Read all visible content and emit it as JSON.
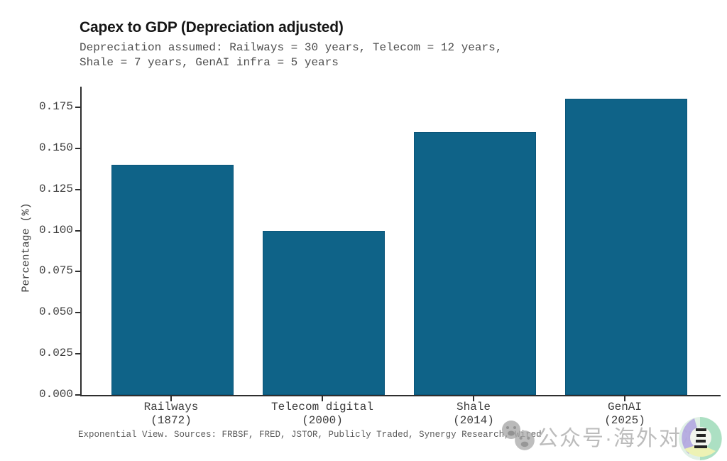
{
  "chart_data": {
    "type": "bar",
    "title": "Capex to GDP (Depreciation adjusted)",
    "subtitle_line1": "Depreciation assumed: Railways = 30 years, Telecom = 12 years,",
    "subtitle_line2": "Shale = 7 years, GenAI infra = 5 years",
    "ylabel": "Percentage (%)",
    "xlabel": "",
    "categories": [
      {
        "line1": "Railways",
        "line2": "(1872)"
      },
      {
        "line1": "Telecom digital",
        "line2": "(2000)"
      },
      {
        "line1": "Shale",
        "line2": "(2014)"
      },
      {
        "line1": "GenAI",
        "line2": "(2025)"
      }
    ],
    "values": [
      0.14,
      0.1,
      0.16,
      0.18
    ],
    "yticks": [
      "0.000",
      "0.025",
      "0.050",
      "0.075",
      "0.100",
      "0.125",
      "0.150",
      "0.175"
    ],
    "ylim": [
      0,
      0.1875
    ],
    "grid": false,
    "legend": null,
    "bar_color": "#0f6388",
    "axis_color": "#2e2e2e",
    "footer": "Exponential View. Sources: FRBSF, FRED, JSTOR, Publicly Traded, Synergy Research, Wired"
  },
  "watermark": {
    "text": "公众号·海外对冲",
    "text_color": "#b5b5b5",
    "icons": [
      "wechat-emoji-icon",
      "wechat-emoji-icon"
    ],
    "avatar_colors": {
      "left": "#b4aae0",
      "right": "#a8dfc0",
      "bottom": "#edf2b0",
      "glyph": "#1a1a1a"
    }
  }
}
